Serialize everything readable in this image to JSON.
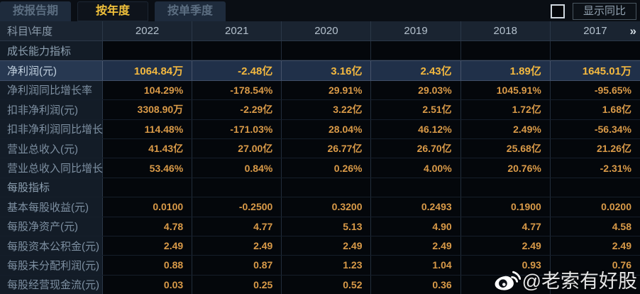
{
  "tabs": [
    {
      "label": "按报告期",
      "active": false
    },
    {
      "label": "按年度",
      "active": true
    },
    {
      "label": "按单季度",
      "active": false
    }
  ],
  "controls": {
    "show_yoy_checkbox_checked": false,
    "show_yoy_label": "显示同比"
  },
  "table": {
    "corner_label": "科目\\年度",
    "more_icon": "»",
    "years": [
      "2022",
      "2021",
      "2020",
      "2019",
      "2018",
      "2017"
    ],
    "rows": [
      {
        "type": "section",
        "label": "成长能力指标",
        "values": [
          "",
          "",
          "",
          "",
          "",
          ""
        ]
      },
      {
        "type": "data",
        "highlight": true,
        "label": "净利润(元)",
        "values": [
          "1064.84万",
          "-2.48亿",
          "3.16亿",
          "2.43亿",
          "1.89亿",
          "1645.01万"
        ]
      },
      {
        "type": "data",
        "label": "净利润同比增长率",
        "values": [
          "104.29%",
          "-178.54%",
          "29.91%",
          "29.03%",
          "1045.91%",
          "-95.65%"
        ]
      },
      {
        "type": "data",
        "label": "扣非净利润(元)",
        "values": [
          "3308.90万",
          "-2.29亿",
          "3.22亿",
          "2.51亿",
          "1.72亿",
          "1.68亿"
        ]
      },
      {
        "type": "data",
        "label": "扣非净利润同比增长率",
        "values": [
          "114.48%",
          "-171.03%",
          "28.04%",
          "46.12%",
          "2.49%",
          "-56.34%"
        ]
      },
      {
        "type": "data",
        "label": "营业总收入(元)",
        "values": [
          "41.43亿",
          "27.00亿",
          "26.77亿",
          "26.70亿",
          "25.68亿",
          "21.26亿"
        ]
      },
      {
        "type": "data",
        "label": "营业总收入同比增长率",
        "values": [
          "53.46%",
          "0.84%",
          "0.26%",
          "4.00%",
          "20.76%",
          "-2.31%"
        ]
      },
      {
        "type": "section",
        "label": "每股指标",
        "values": [
          "",
          "",
          "",
          "",
          "",
          ""
        ]
      },
      {
        "type": "data",
        "label": "基本每股收益(元)",
        "values": [
          "0.0100",
          "-0.2500",
          "0.3200",
          "0.2493",
          "0.1900",
          "0.0200"
        ]
      },
      {
        "type": "data",
        "label": "每股净资产(元)",
        "values": [
          "4.78",
          "4.77",
          "5.13",
          "4.90",
          "4.77",
          "4.58"
        ]
      },
      {
        "type": "data",
        "label": "每股资本公积金(元)",
        "values": [
          "2.49",
          "2.49",
          "2.49",
          "2.49",
          "2.49",
          "2.49"
        ]
      },
      {
        "type": "data",
        "label": "每股未分配利润(元)",
        "values": [
          "0.88",
          "0.87",
          "1.23",
          "1.04",
          "0.93",
          "0.76"
        ]
      },
      {
        "type": "data",
        "label": "每股经营现金流(元)",
        "values": [
          "0.03",
          "0.25",
          "0.52",
          "0.36",
          "",
          ""
        ]
      }
    ]
  },
  "watermark": {
    "icon": "weibo-icon",
    "text": "@老索有好股"
  },
  "colors": {
    "accent_gold": "#f1c13b",
    "value_orange": "#d99a48",
    "highlight_value": "#f3b83f",
    "highlight_row_bg": "#203049",
    "header_bg": "#1a2431",
    "label_col_bg": "#131c27",
    "cell_bg": "#04070b",
    "grid_line": "#2b3848",
    "tab_inactive_bg": "#1e2b3c",
    "tab_inactive_text": "#5c6e81"
  }
}
